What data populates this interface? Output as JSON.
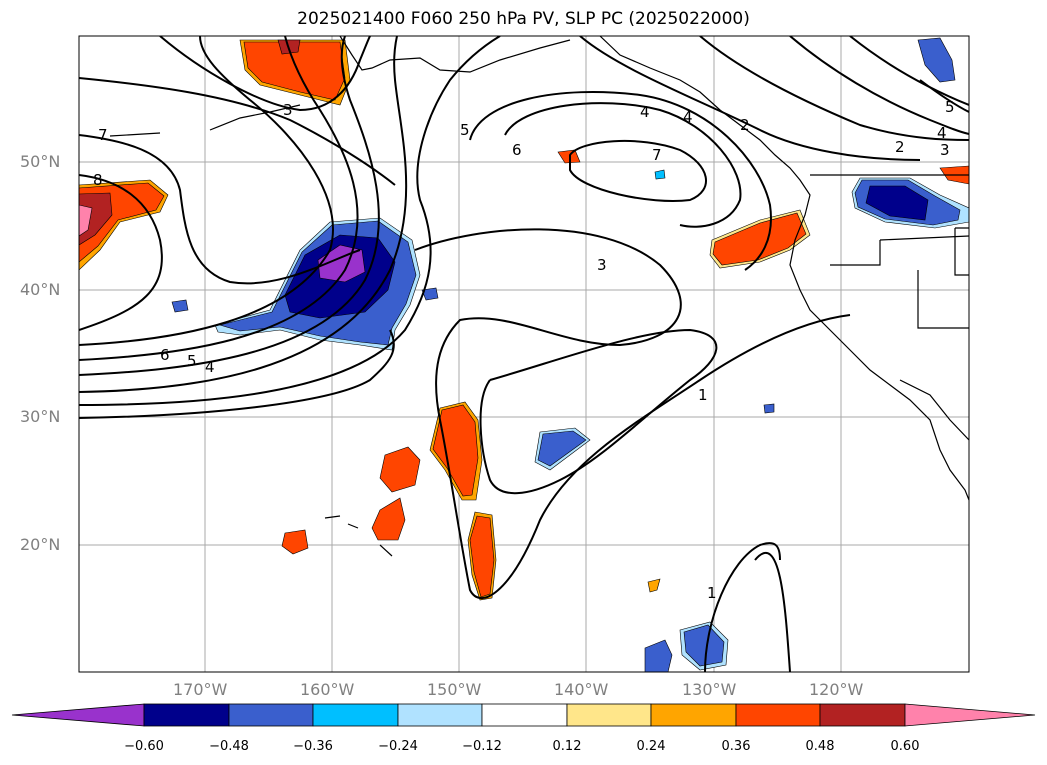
{
  "title": "2025021400 F060 250 hPa PV, SLP PC (2025022000)",
  "axes": {
    "lat_labels": [
      "50°N",
      "40°N",
      "30°N",
      "20°N"
    ],
    "lon_labels": [
      "170°W",
      "160°W",
      "150°W",
      "140°W",
      "130°W",
      "120°W"
    ],
    "tick_color": "#808080"
  },
  "contour_labels": [
    "7",
    "8",
    "3",
    "5",
    "6",
    "7",
    "4",
    "4",
    "2",
    "2",
    "3",
    "4",
    "5",
    "3",
    "6",
    "5",
    "4",
    "1",
    "1"
  ],
  "colorbar": {
    "ticks": [
      "−0.60",
      "−0.48",
      "−0.36",
      "−0.24",
      "−0.12",
      "0.12",
      "0.24",
      "0.36",
      "0.48",
      "0.60"
    ],
    "colors": [
      "#9932cc",
      "#00008b",
      "#3a5fcd",
      "#00bfff",
      "#b0e2ff",
      "#ffffff",
      "#ffe68a",
      "#ffa500",
      "#ff4500",
      "#b22222",
      "#ff82ab"
    ]
  }
}
